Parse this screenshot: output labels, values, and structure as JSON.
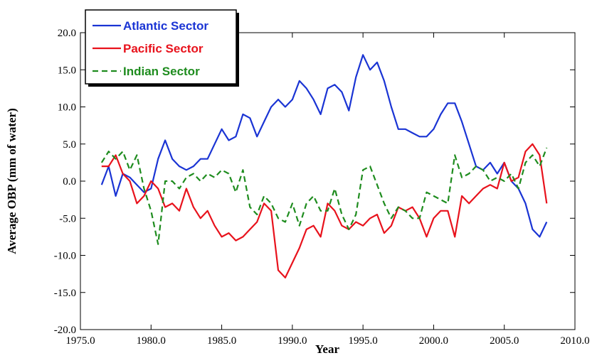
{
  "chart_data": {
    "type": "line",
    "x_label": "Year",
    "y_label": "Average OBP (mm of water)",
    "x": [
      1976.5,
      1977,
      1977.5,
      1978,
      1978.5,
      1979,
      1979.5,
      1980,
      1980.5,
      1981,
      1981.5,
      1982,
      1982.5,
      1983,
      1983.5,
      1984,
      1984.5,
      1985,
      1985.5,
      1986,
      1986.5,
      1987,
      1987.5,
      1988,
      1988.5,
      1989,
      1989.5,
      1990,
      1990.5,
      1991,
      1991.5,
      1992,
      1992.5,
      1993,
      1993.5,
      1994,
      1994.5,
      1995,
      1995.5,
      1996,
      1996.5,
      1997,
      1997.5,
      1998,
      1998.5,
      1999,
      1999.5,
      2000,
      2000.5,
      2001,
      2001.5,
      2002,
      2002.5,
      2003,
      2003.5,
      2004,
      2004.5,
      2005,
      2005.5,
      2006,
      2006.5,
      2007,
      2007.5,
      2008
    ],
    "series": [
      {
        "name": "Atlantic Sector",
        "color": "#1a34d4",
        "line_style": "solid",
        "values": [
          -0.5,
          2,
          -2,
          1,
          0.5,
          -0.5,
          -1.5,
          -1,
          3,
          5.5,
          3,
          2,
          1.5,
          2,
          3,
          3,
          5,
          7,
          5.5,
          6,
          9,
          8.5,
          6,
          8,
          10,
          11,
          10,
          11,
          13.5,
          12.5,
          11,
          9,
          12.5,
          13,
          12,
          9.5,
          14,
          17,
          15,
          16,
          13.5,
          10,
          7,
          7,
          6.5,
          6,
          6,
          7,
          9,
          10.5,
          10.5,
          8,
          5,
          2,
          1.5,
          2.5,
          1,
          2.5,
          0,
          -1,
          -3,
          -6.5,
          -7.5,
          -5.5
        ]
      },
      {
        "name": "Pacific Sector",
        "color": "#e8121c",
        "line_style": "solid",
        "values": [
          2,
          2,
          3.5,
          1,
          0,
          -3,
          -2,
          0,
          -1,
          -3.5,
          -3,
          -4,
          -1,
          -3.5,
          -5,
          -4,
          -6,
          -7.5,
          -7,
          -8,
          -7.5,
          -6.5,
          -5.5,
          -3,
          -4,
          -12,
          -13,
          -11,
          -9,
          -6.5,
          -6,
          -7.5,
          -3,
          -4,
          -6,
          -6.5,
          -5.5,
          -6,
          -5,
          -4.5,
          -7,
          -6,
          -3.5,
          -4,
          -3.5,
          -5,
          -7.5,
          -5,
          -4,
          -4,
          -7.5,
          -2,
          -3,
          -2,
          -1,
          -0.5,
          -1,
          2.5,
          0,
          0.5,
          4,
          5,
          3.5,
          -3
        ]
      },
      {
        "name": "Indian Sector",
        "color": "#1e8c1e",
        "line_style": "dashed",
        "values": [
          2.5,
          4,
          3,
          4,
          1.5,
          3.5,
          -1,
          -4,
          -8.5,
          0,
          0,
          -1,
          0.5,
          1,
          0,
          1,
          0.5,
          1.5,
          1,
          -1.5,
          1.5,
          -3.5,
          -4.5,
          -2,
          -3,
          -5,
          -5.5,
          -3,
          -6,
          -3,
          -2,
          -4,
          -4,
          -1,
          -4.5,
          -6.5,
          -4.5,
          1.5,
          2,
          -0.5,
          -3,
          -5,
          -3.5,
          -4,
          -5,
          -5,
          -1.5,
          -2,
          -2.5,
          -3,
          3.5,
          0.5,
          1,
          2,
          1.5,
          0,
          0.5,
          0,
          1,
          -1,
          2.5,
          3.5,
          2,
          4.5
        ]
      }
    ],
    "xlim": [
      1975,
      2010
    ],
    "ylim": [
      -20,
      20
    ],
    "xticks": [
      {
        "value": 1975,
        "label": "1975.0"
      },
      {
        "value": 1980,
        "label": "1980.0"
      },
      {
        "value": 1985,
        "label": "1985.0"
      },
      {
        "value": 1990,
        "label": "1990.0"
      },
      {
        "value": 1995,
        "label": "1995.0"
      },
      {
        "value": 2000,
        "label": "2000.0"
      },
      {
        "value": 2005,
        "label": "2005.0"
      },
      {
        "value": 2010,
        "label": "2010.0"
      }
    ],
    "yticks": [
      {
        "value": -20,
        "label": "-20.0"
      },
      {
        "value": -15,
        "label": "-15.0"
      },
      {
        "value": -10,
        "label": "-10.0"
      },
      {
        "value": -5,
        "label": "-5.0"
      },
      {
        "value": 0,
        "label": "0.0"
      },
      {
        "value": 5,
        "label": "5.0"
      },
      {
        "value": 10,
        "label": "10.0"
      },
      {
        "value": 15,
        "label": "15.0"
      },
      {
        "value": 20,
        "label": "20.0"
      }
    ],
    "grid": false,
    "legend_position": "upper-left"
  }
}
